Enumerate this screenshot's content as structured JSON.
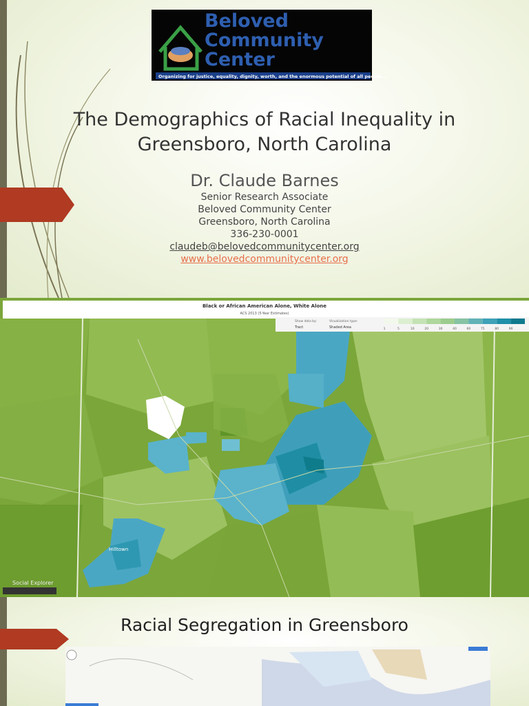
{
  "slide1": {
    "logo": {
      "line1": "Beloved",
      "line2": "Community",
      "line3": "Center",
      "tagline": "Organizing for justice, equality, dignity, worth, and the enormous potential of all people..."
    },
    "title": "The Demographics of Racial Inequality in Greensboro, North Carolina",
    "presenter": "Dr. Claude Barnes",
    "details": [
      "Senior Research Associate",
      "Beloved Community Center",
      "Greensboro, North Carolina",
      "336-230-0001"
    ],
    "email": "claudeb@belovedcommunitycenter.org",
    "website": "www.belovedcommunitycenter.org"
  },
  "slide2": {
    "map_title": "Black or African American Alone, White Alone",
    "map_subtitle": "ACS 2013 (5-Year Estimates)",
    "show_data_label": "Show data by:",
    "show_data_value": "Tract",
    "viz_label": "Visualization type:",
    "viz_value": "Shaded Area",
    "legend": [
      1,
      5,
      10,
      20,
      30,
      40,
      60,
      75,
      80,
      90
    ],
    "place_label": "Hilltown",
    "brand": "Social Explorer"
  },
  "slide3": {
    "title": "Racial Segregation in Greensboro"
  }
}
